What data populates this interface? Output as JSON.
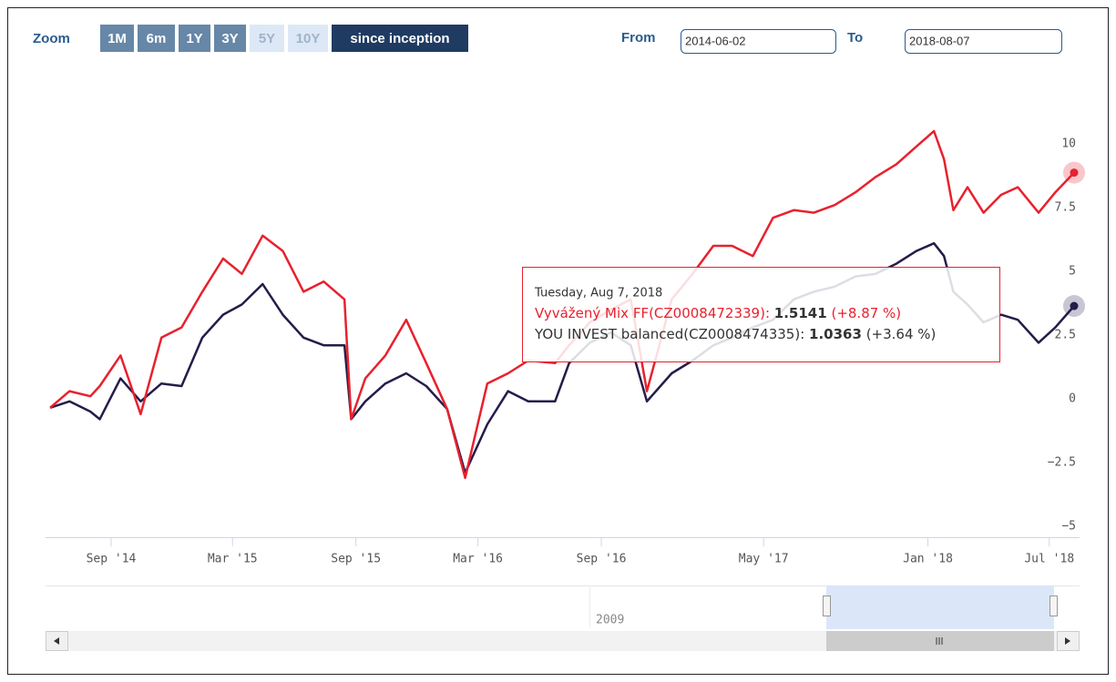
{
  "range_selector": {
    "zoom_label": "Zoom",
    "buttons": [
      "1M",
      "6m",
      "1Y",
      "3Y",
      "5Y",
      "10Y",
      "since inception"
    ],
    "from_label": "From",
    "from": "2014-06-02",
    "to_label": "To",
    "to": "2018-08-07"
  },
  "navigator": {
    "label": "2009"
  },
  "tooltip": {
    "header": "Tuesday, Aug 7, 2018",
    "rows": [
      {
        "label": "Vyvážený Mix FF(CZ0008472339):",
        "price": "1.5141",
        "change": "(+8.87 %)"
      },
      {
        "label": "YOU INVEST balanced(CZ0008474335):",
        "price": "1.0363",
        "change": "(+3.64 %)"
      }
    ]
  },
  "chart_data": {
    "type": "line",
    "x": [
      "2014-06-02",
      "2014-07-01",
      "2014-08-01",
      "2014-08-15",
      "2014-09-15",
      "2014-10-15",
      "2014-11-15",
      "2014-12-15",
      "2015-01-15",
      "2015-02-15",
      "2015-03-15",
      "2015-04-15",
      "2015-05-15",
      "2015-06-15",
      "2015-07-15",
      "2015-08-15",
      "2015-08-25",
      "2015-09-15",
      "2015-10-15",
      "2015-11-15",
      "2015-12-15",
      "2016-01-15",
      "2016-02-11",
      "2016-03-15",
      "2016-04-15",
      "2016-05-15",
      "2016-06-24",
      "2016-07-15",
      "2016-08-15",
      "2016-09-15",
      "2016-10-15",
      "2016-11-08",
      "2016-12-15",
      "2017-01-15",
      "2017-02-15",
      "2017-03-15",
      "2017-04-15",
      "2017-05-15",
      "2017-06-15",
      "2017-07-15",
      "2017-08-15",
      "2017-09-15",
      "2017-10-15",
      "2017-11-15",
      "2017-12-15",
      "2018-01-10",
      "2018-01-25",
      "2018-02-08",
      "2018-03-01",
      "2018-03-25",
      "2018-04-20",
      "2018-05-15",
      "2018-06-15",
      "2018-07-10",
      "2018-08-07"
    ],
    "series": [
      {
        "color": "#e8212e",
        "values": [
          -0.35,
          0.3,
          0.1,
          0.5,
          1.7,
          -0.6,
          2.4,
          2.8,
          4.2,
          5.5,
          4.9,
          6.4,
          5.8,
          4.2,
          4.6,
          3.9,
          -0.8,
          0.8,
          1.7,
          3.1,
          1.4,
          -0.4,
          -3.1,
          0.6,
          1.0,
          1.5,
          1.4,
          2.1,
          3.0,
          3.5,
          3.9,
          0.3,
          3.9,
          4.9,
          6.0,
          6.0,
          5.6,
          7.1,
          7.4,
          7.3,
          7.6,
          8.1,
          8.7,
          9.2,
          9.9,
          10.5,
          9.4,
          7.4,
          8.3,
          7.3,
          8.0,
          8.3,
          7.3,
          8.1,
          8.87
        ]
      },
      {
        "color": "#241c4a",
        "values": [
          -0.35,
          -0.1,
          -0.5,
          -0.8,
          0.8,
          -0.1,
          0.6,
          0.5,
          2.4,
          3.3,
          3.7,
          4.5,
          3.3,
          2.4,
          2.1,
          2.1,
          -0.8,
          -0.1,
          0.6,
          1.0,
          0.5,
          -0.4,
          -2.9,
          -1.0,
          0.3,
          -0.1,
          -0.1,
          1.4,
          2.2,
          2.6,
          2.1,
          -0.1,
          1.0,
          1.5,
          2.1,
          2.4,
          2.8,
          3.1,
          3.9,
          4.2,
          4.4,
          4.8,
          4.9,
          5.3,
          5.8,
          6.1,
          5.6,
          4.2,
          3.7,
          3.0,
          3.3,
          3.1,
          2.2,
          2.8,
          3.64
        ]
      }
    ],
    "xlim": [
      "2014-06-02",
      "2018-08-07"
    ],
    "xticks": [
      {
        "value": "2014-09-01",
        "label": "Sep '14"
      },
      {
        "value": "2015-03-01",
        "label": "Mar '15"
      },
      {
        "value": "2015-09-01",
        "label": "Sep '15"
      },
      {
        "value": "2016-03-01",
        "label": "Mar '16"
      },
      {
        "value": "2016-09-01",
        "label": "Sep '16"
      },
      {
        "value": "2017-05-01",
        "label": "May '17"
      },
      {
        "value": "2018-01-01",
        "label": "Jan '18"
      },
      {
        "value": "2018-07-01",
        "label": "Jul '18"
      }
    ],
    "ylim": [
      -5.43,
      12.07
    ],
    "yticks": [
      10,
      7.5,
      5,
      2.5,
      0,
      {
        "value": -2.5,
        "label": "−2.5"
      },
      {
        "value": -5,
        "label": "−5"
      }
    ],
    "grid": false
  }
}
